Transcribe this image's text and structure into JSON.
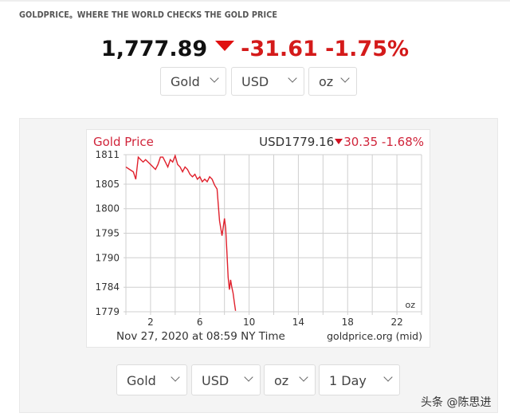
{
  "header": {
    "site_title": "GOLDPRICE。WHERE THE WORLD CHECKS THE GOLD PRICE",
    "price": "1,777.89",
    "direction_icon": "down-triangle",
    "change": "-31.61",
    "change_pct": "-1.75%",
    "colors": {
      "down": "#d41a1a",
      "price": "#111111"
    }
  },
  "top_selectors": [
    {
      "name": "metal",
      "value": "Gold"
    },
    {
      "name": "currency",
      "value": "USD"
    },
    {
      "name": "unit",
      "value": "oz"
    }
  ],
  "chart_panel": {
    "title": "Gold Price",
    "quote_currency_price": "USD1779.16",
    "quote_change": "30.35",
    "quote_change_pct": "-1.68%",
    "unit_label": "oz",
    "footer_time": "Nov 27, 2020 at 08:59 NY Time",
    "footer_source": "goldprice.org (mid)"
  },
  "bottom_selectors": [
    {
      "name": "metal",
      "value": "Gold"
    },
    {
      "name": "currency",
      "value": "USD"
    },
    {
      "name": "unit",
      "value": "oz"
    },
    {
      "name": "range",
      "value": "1 Day"
    }
  ],
  "watermark": "头条 @陈思进",
  "chart_data": {
    "type": "line",
    "title": "Gold Price",
    "subtitle": "USD1779.16 ▼30.35 -1.68%",
    "xlabel": "Nov 27, 2020 at 08:59 NY Time",
    "ylabel": "",
    "annotation": "goldprice.org (mid)",
    "unit": "oz",
    "x_ticks": [
      2,
      6,
      10,
      14,
      18,
      22
    ],
    "y_ticks": [
      1779,
      1784,
      1790,
      1795,
      1800,
      1805,
      1811
    ],
    "xlim": [
      0,
      24
    ],
    "ylim": [
      1779,
      1811
    ],
    "grid": true,
    "legend": "none",
    "series": [
      {
        "name": "Gold Price (USD/oz)",
        "color": "#e0202c",
        "x": [
          0.0,
          0.3,
          0.6,
          0.8,
          1.0,
          1.2,
          1.4,
          1.6,
          1.8,
          2.0,
          2.2,
          2.4,
          2.6,
          2.8,
          3.0,
          3.2,
          3.4,
          3.6,
          3.8,
          4.0,
          4.2,
          4.4,
          4.6,
          4.8,
          5.0,
          5.2,
          5.4,
          5.6,
          5.8,
          6.0,
          6.2,
          6.4,
          6.6,
          6.8,
          7.0,
          7.2,
          7.4,
          7.6,
          7.8,
          8.0,
          8.1,
          8.2,
          8.3,
          8.4,
          8.5,
          8.6,
          8.7,
          8.8,
          8.9
        ],
        "y": [
          1808.5,
          1808,
          1807.5,
          1806,
          1810.5,
          1810,
          1809.5,
          1810,
          1809.5,
          1809,
          1808.5,
          1808,
          1809,
          1810.5,
          1810.5,
          1809.5,
          1808.5,
          1810,
          1809.5,
          1810.8,
          1809,
          1808.5,
          1807.5,
          1808.5,
          1808,
          1807,
          1806.5,
          1807,
          1806,
          1806.5,
          1805.5,
          1806,
          1805.5,
          1806.5,
          1806,
          1804.8,
          1804,
          1797.5,
          1794.5,
          1798,
          1796,
          1791,
          1786,
          1783.5,
          1785.5,
          1784,
          1782.8,
          1781,
          1779.2
        ]
      }
    ]
  }
}
